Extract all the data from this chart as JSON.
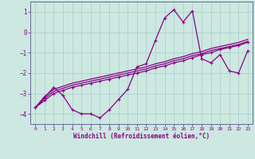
{
  "xlabel": "Windchill (Refroidissement éolien,°C)",
  "background_color": "#cce8e0",
  "grid_color": "#aacccc",
  "line_color": "#880088",
  "ylim": [
    -4.5,
    1.5
  ],
  "xlim": [
    -0.5,
    23.5
  ],
  "yticks": [
    -4,
    -3,
    -2,
    -1,
    0,
    1
  ],
  "xticks": [
    0,
    1,
    2,
    3,
    4,
    5,
    6,
    7,
    8,
    9,
    10,
    11,
    12,
    13,
    14,
    15,
    16,
    17,
    18,
    19,
    20,
    21,
    22,
    23
  ],
  "series1_y": [
    -3.7,
    -3.2,
    -2.7,
    -3.1,
    -3.8,
    -4.0,
    -4.0,
    -4.2,
    -3.8,
    -3.3,
    -2.8,
    -1.7,
    -1.55,
    -0.4,
    0.7,
    1.1,
    0.5,
    1.05,
    -1.3,
    -1.5,
    -1.1,
    -1.9,
    -2.0,
    -0.9
  ],
  "series2_y": [
    -3.7,
    -3.35,
    -3.0,
    -2.85,
    -2.7,
    -2.6,
    -2.5,
    -2.4,
    -2.3,
    -2.2,
    -2.1,
    -2.0,
    -1.9,
    -1.75,
    -1.65,
    -1.5,
    -1.4,
    -1.25,
    -1.1,
    -1.0,
    -0.85,
    -0.75,
    -0.65,
    -0.5
  ],
  "series3_y": [
    -3.7,
    -3.25,
    -2.9,
    -2.75,
    -2.6,
    -2.5,
    -2.4,
    -2.3,
    -2.2,
    -2.1,
    -2.0,
    -1.9,
    -1.8,
    -1.65,
    -1.55,
    -1.4,
    -1.3,
    -1.15,
    -1.05,
    -0.9,
    -0.8,
    -0.7,
    -0.6,
    -0.45
  ],
  "series4_y": [
    -3.7,
    -3.15,
    -2.8,
    -2.65,
    -2.5,
    -2.4,
    -2.3,
    -2.2,
    -2.1,
    -2.0,
    -1.9,
    -1.8,
    -1.7,
    -1.55,
    -1.45,
    -1.3,
    -1.2,
    -1.05,
    -0.95,
    -0.8,
    -0.7,
    -0.6,
    -0.5,
    -0.35
  ]
}
